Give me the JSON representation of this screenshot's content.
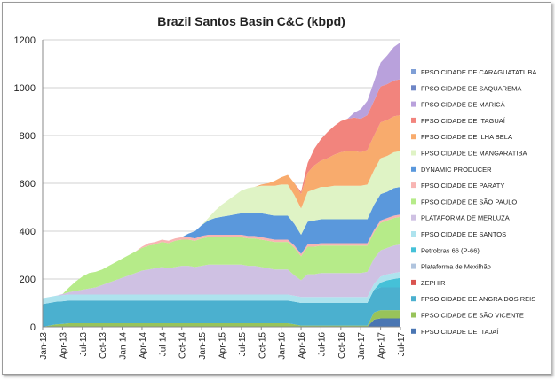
{
  "chart_data": {
    "type": "area",
    "stacked": true,
    "title": "Brazil Santos Basin C&C (kbpd)",
    "xlabel": "",
    "ylabel": "",
    "ylim": [
      0,
      1200
    ],
    "yticks": [
      0,
      200,
      400,
      600,
      800,
      1000,
      1200
    ],
    "grid": true,
    "legend_position": "right",
    "x_tick_labels": [
      "Jan-13",
      "Apr-13",
      "Jul-13",
      "Oct-13",
      "Jan-14",
      "Apr-14",
      "Jul-14",
      "Oct-14",
      "Jan-15",
      "Apr-15",
      "Jul-15",
      "Oct-15",
      "Jan-16",
      "Apr-16",
      "Jul-16",
      "Oct-16",
      "Jan-17",
      "Apr-17",
      "Jul-17"
    ],
    "x": [
      "Jan-13",
      "Feb-13",
      "Mar-13",
      "Apr-13",
      "May-13",
      "Jun-13",
      "Jul-13",
      "Aug-13",
      "Sep-13",
      "Oct-13",
      "Nov-13",
      "Dec-13",
      "Jan-14",
      "Feb-14",
      "Mar-14",
      "Apr-14",
      "May-14",
      "Jun-14",
      "Jul-14",
      "Aug-14",
      "Sep-14",
      "Oct-14",
      "Nov-14",
      "Dec-14",
      "Jan-15",
      "Feb-15",
      "Mar-15",
      "Apr-15",
      "May-15",
      "Jun-15",
      "Jul-15",
      "Aug-15",
      "Sep-15",
      "Oct-15",
      "Nov-15",
      "Dec-15",
      "Jan-16",
      "Feb-16",
      "Mar-16",
      "Apr-16",
      "May-16",
      "Jun-16",
      "Jul-16",
      "Aug-16",
      "Sep-16",
      "Oct-16",
      "Nov-16",
      "Dec-16",
      "Jan-17",
      "Feb-17",
      "Mar-17",
      "Apr-17",
      "May-17",
      "Jun-17",
      "Jul-17"
    ],
    "series": [
      {
        "name": "FPSO CIDADE DE ITAJAÍ",
        "color": "#4a76b3",
        "values": [
          0,
          0,
          0,
          0,
          0,
          0,
          0,
          0,
          0,
          0,
          0,
          0,
          0,
          0,
          0,
          0,
          0,
          0,
          0,
          0,
          0,
          0,
          0,
          0,
          0,
          0,
          0,
          0,
          0,
          0,
          0,
          0,
          0,
          0,
          0,
          0,
          0,
          0,
          0,
          0,
          0,
          0,
          0,
          0,
          0,
          0,
          0,
          0,
          0,
          0,
          30,
          35,
          35,
          35,
          35
        ]
      },
      {
        "name": "FPSO CIDADE DE SÃO VICENTE",
        "color": "#98c35a",
        "values": [
          0,
          5,
          10,
          12,
          15,
          15,
          15,
          15,
          15,
          15,
          15,
          15,
          15,
          15,
          15,
          15,
          15,
          15,
          15,
          15,
          15,
          15,
          15,
          15,
          15,
          15,
          15,
          15,
          15,
          15,
          15,
          15,
          15,
          15,
          15,
          15,
          15,
          15,
          10,
          5,
          5,
          5,
          5,
          5,
          5,
          5,
          5,
          5,
          5,
          5,
          30,
          35,
          35,
          35,
          35
        ]
      },
      {
        "name": "FPSO CIDADE DE ANGRA DOS REIS",
        "color": "#4bb0cf",
        "values": [
          95,
          95,
          95,
          95,
          95,
          95,
          95,
          95,
          95,
          95,
          95,
          95,
          95,
          95,
          95,
          95,
          95,
          95,
          95,
          95,
          95,
          95,
          95,
          95,
          95,
          95,
          95,
          95,
          95,
          95,
          95,
          95,
          95,
          95,
          95,
          95,
          95,
          95,
          95,
          95,
          95,
          95,
          95,
          95,
          95,
          95,
          95,
          95,
          95,
          95,
          95,
          95,
          95,
          95,
          95
        ]
      },
      {
        "name": "ZEPHIR I",
        "color": "#d9534f",
        "values": [
          0,
          0,
          0,
          0,
          0,
          0,
          0,
          0,
          0,
          0,
          0,
          0,
          0,
          0,
          0,
          0,
          0,
          0,
          0,
          0,
          0,
          0,
          0,
          0,
          0,
          0,
          0,
          0,
          0,
          0,
          0,
          0,
          0,
          0,
          0,
          0,
          0,
          0,
          0,
          0,
          0,
          0,
          0,
          0,
          0,
          0,
          0,
          0,
          0,
          0,
          0,
          0,
          0,
          0,
          0
        ]
      },
      {
        "name": "Plataforma de Mexilhão",
        "color": "#b0c4de",
        "values": [
          0,
          0,
          0,
          0,
          0,
          0,
          0,
          0,
          0,
          0,
          0,
          0,
          0,
          0,
          0,
          0,
          0,
          0,
          0,
          0,
          0,
          0,
          0,
          0,
          0,
          0,
          0,
          0,
          0,
          0,
          0,
          0,
          0,
          0,
          0,
          0,
          0,
          0,
          0,
          0,
          0,
          0,
          0,
          0,
          0,
          0,
          0,
          0,
          0,
          0,
          0,
          0,
          0,
          0,
          0
        ]
      },
      {
        "name": "Petrobras 66 (P-66)",
        "color": "#45c1d8",
        "values": [
          0,
          0,
          0,
          0,
          0,
          0,
          0,
          0,
          0,
          0,
          0,
          0,
          0,
          0,
          0,
          0,
          0,
          0,
          0,
          0,
          0,
          0,
          0,
          0,
          0,
          0,
          0,
          0,
          0,
          0,
          0,
          0,
          0,
          0,
          0,
          0,
          0,
          0,
          0,
          0,
          0,
          0,
          0,
          0,
          0,
          0,
          0,
          0,
          0,
          0,
          0,
          20,
          30,
          35,
          40
        ]
      },
      {
        "name": "FPSO CIDADE DE SANTOS",
        "color": "#aee3ee",
        "values": [
          25,
          25,
          25,
          25,
          25,
          25,
          25,
          25,
          25,
          25,
          25,
          25,
          25,
          25,
          25,
          25,
          25,
          25,
          25,
          25,
          25,
          25,
          25,
          25,
          25,
          25,
          25,
          25,
          25,
          25,
          25,
          25,
          25,
          25,
          25,
          25,
          25,
          25,
          25,
          25,
          25,
          25,
          25,
          25,
          25,
          25,
          25,
          25,
          25,
          25,
          25,
          25,
          25,
          25,
          25
        ]
      },
      {
        "name": "PLATAFORMA DE MERLUZA",
        "color": "#cfc1e3",
        "values": [
          0,
          0,
          0,
          5,
          10,
          15,
          20,
          25,
          30,
          40,
          50,
          60,
          70,
          80,
          90,
          100,
          105,
          110,
          115,
          110,
          115,
          120,
          120,
          115,
          120,
          125,
          125,
          125,
          125,
          125,
          125,
          120,
          120,
          115,
          110,
          105,
          105,
          105,
          85,
          70,
          95,
          95,
          100,
          100,
          100,
          100,
          100,
          100,
          100,
          105,
          105,
          110,
          110,
          115,
          115
        ]
      },
      {
        "name": "FPSO CIDADE DE SÃO PAULO",
        "color": "#b6eb89",
        "values": [
          0,
          0,
          0,
          0,
          20,
          40,
          55,
          65,
          65,
          65,
          70,
          75,
          80,
          85,
          90,
          95,
          100,
          100,
          105,
          105,
          110,
          110,
          110,
          110,
          115,
          115,
          115,
          115,
          115,
          115,
          115,
          115,
          115,
          115,
          115,
          115,
          115,
          115,
          115,
          100,
          115,
          115,
          115,
          115,
          115,
          115,
          115,
          115,
          115,
          110,
          110,
          115,
          115,
          115,
          115
        ]
      },
      {
        "name": "FPSO CIDADE DE PARATY",
        "color": "#f8b5b3",
        "values": [
          0,
          0,
          0,
          0,
          0,
          0,
          0,
          0,
          0,
          0,
          0,
          0,
          0,
          0,
          0,
          5,
          10,
          10,
          10,
          10,
          10,
          10,
          10,
          10,
          10,
          10,
          10,
          10,
          10,
          10,
          10,
          10,
          10,
          10,
          10,
          10,
          10,
          10,
          10,
          10,
          10,
          10,
          10,
          10,
          10,
          10,
          10,
          10,
          10,
          10,
          10,
          10,
          10,
          10,
          10
        ]
      },
      {
        "name": "DYNAMIC PRODUCER",
        "color": "#5a98dc",
        "values": [
          0,
          0,
          0,
          0,
          0,
          0,
          0,
          0,
          0,
          0,
          0,
          0,
          0,
          0,
          0,
          0,
          0,
          0,
          0,
          0,
          0,
          0,
          15,
          30,
          45,
          60,
          70,
          75,
          80,
          85,
          90,
          95,
          95,
          100,
          100,
          100,
          100,
          100,
          90,
          80,
          95,
          100,
          100,
          100,
          100,
          100,
          100,
          100,
          100,
          100,
          105,
          110,
          110,
          115,
          115
        ]
      },
      {
        "name": "FPSO CIDADE DE MANGARATIBA",
        "color": "#dff3c5",
        "values": [
          0,
          0,
          0,
          0,
          0,
          0,
          0,
          0,
          0,
          0,
          0,
          0,
          0,
          0,
          0,
          0,
          0,
          0,
          0,
          0,
          0,
          0,
          0,
          0,
          0,
          10,
          30,
          50,
          65,
          80,
          95,
          105,
          110,
          115,
          120,
          125,
          130,
          130,
          120,
          110,
          125,
          130,
          135,
          135,
          140,
          140,
          140,
          140,
          140,
          145,
          145,
          150,
          150,
          150,
          150
        ]
      },
      {
        "name": "FPSO CIDADE DE ILHA BELA",
        "color": "#f8ab6d",
        "values": [
          0,
          0,
          0,
          0,
          0,
          0,
          0,
          0,
          0,
          0,
          0,
          0,
          0,
          0,
          0,
          0,
          0,
          0,
          0,
          0,
          0,
          0,
          0,
          0,
          0,
          0,
          0,
          0,
          0,
          0,
          0,
          0,
          0,
          5,
          10,
          20,
          30,
          40,
          50,
          60,
          80,
          100,
          110,
          120,
          130,
          140,
          145,
          145,
          140,
          145,
          145,
          150,
          150,
          150,
          150
        ]
      },
      {
        "name": "FPSO CIDADE DE ITAGUAÍ",
        "color": "#f2847d",
        "values": [
          0,
          0,
          0,
          0,
          0,
          0,
          0,
          0,
          0,
          0,
          0,
          0,
          0,
          0,
          0,
          0,
          0,
          0,
          0,
          0,
          0,
          0,
          0,
          0,
          0,
          0,
          0,
          0,
          0,
          0,
          0,
          0,
          0,
          0,
          0,
          0,
          0,
          0,
          0,
          10,
          40,
          70,
          90,
          110,
          120,
          130,
          135,
          140,
          140,
          145,
          145,
          150,
          150,
          150,
          150
        ]
      },
      {
        "name": "FPSO CIDADE DE MARICÁ",
        "color": "#b9a1dc",
        "values": [
          0,
          0,
          0,
          0,
          0,
          0,
          0,
          0,
          0,
          0,
          0,
          0,
          0,
          0,
          0,
          0,
          0,
          0,
          0,
          0,
          0,
          0,
          0,
          0,
          0,
          0,
          0,
          0,
          0,
          0,
          0,
          0,
          0,
          0,
          0,
          0,
          0,
          0,
          0,
          0,
          0,
          0,
          0,
          0,
          0,
          0,
          0,
          20,
          40,
          60,
          80,
          100,
          120,
          140,
          155
        ]
      },
      {
        "name": "FPSO CIDADE DE SAQUAREMA",
        "color": "#6e86c6",
        "values": [
          0,
          0,
          0,
          0,
          0,
          0,
          0,
          0,
          0,
          0,
          0,
          0,
          0,
          0,
          0,
          0,
          0,
          0,
          0,
          0,
          0,
          0,
          0,
          0,
          0,
          0,
          0,
          0,
          0,
          0,
          0,
          0,
          0,
          0,
          0,
          0,
          0,
          0,
          0,
          0,
          0,
          0,
          0,
          0,
          0,
          0,
          0,
          0,
          0,
          0,
          0,
          0,
          0,
          0,
          0
        ]
      },
      {
        "name": "FPSO CIDADE DE CARAGUATATUBA",
        "color": "#7f9fd6",
        "values": [
          0,
          0,
          0,
          0,
          0,
          0,
          0,
          0,
          0,
          0,
          0,
          0,
          0,
          0,
          0,
          0,
          0,
          0,
          0,
          0,
          0,
          0,
          0,
          0,
          0,
          0,
          0,
          0,
          0,
          0,
          0,
          0,
          0,
          0,
          0,
          0,
          0,
          0,
          0,
          0,
          0,
          0,
          0,
          0,
          0,
          0,
          0,
          0,
          0,
          0,
          0,
          0,
          0,
          0,
          0
        ]
      }
    ]
  }
}
